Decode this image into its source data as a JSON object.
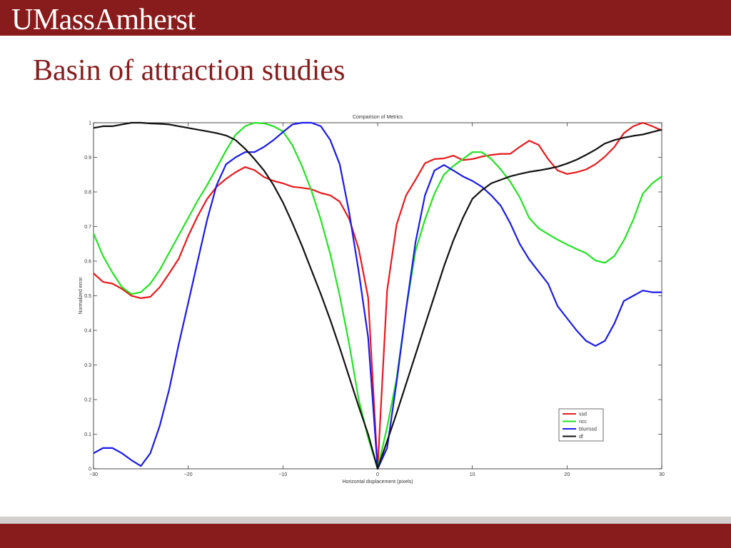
{
  "header": {
    "logo_text": "UMassAmherst"
  },
  "slide": {
    "title": "Basin of attraction studies"
  },
  "colors": {
    "brand": "#881c1c",
    "ssd": "#e8191c",
    "ncc": "#22e322",
    "blurrssd": "#1a1ae8",
    "df": "#111111"
  },
  "chart_data": {
    "type": "line",
    "title": "Comparison of Metrics",
    "xlabel": "Horizontal displacement (pixels)",
    "ylabel": "Normalized error",
    "xlim": [
      -30,
      30
    ],
    "ylim": [
      0,
      1
    ],
    "xticks": [
      -30,
      -20,
      -10,
      0,
      10,
      20,
      30
    ],
    "xtick_labels": [
      "−30",
      "−20",
      "−10",
      "0",
      "10",
      "20",
      "30"
    ],
    "yticks": [
      0,
      0.1,
      0.2,
      0.3,
      0.4,
      0.5,
      0.6,
      0.7,
      0.8,
      0.9,
      1
    ],
    "ytick_labels": [
      "0",
      "0.1",
      "0.2",
      "0.3",
      "0.4",
      "0.5",
      "0.6",
      "0.7",
      "0.8",
      "0.9",
      "1"
    ],
    "grid": false,
    "legend_position": "bottom-right",
    "x": [
      -30,
      -29,
      -28,
      -27,
      -26,
      -25,
      -24,
      -23,
      -22,
      -21,
      -20,
      -19,
      -18,
      -17,
      -16,
      -15,
      -14,
      -13,
      -12,
      -11,
      -10,
      -9,
      -8,
      -7,
      -6,
      -5,
      -4,
      -3,
      -2,
      -1,
      0,
      1,
      2,
      3,
      4,
      5,
      6,
      7,
      8,
      9,
      10,
      11,
      12,
      13,
      14,
      15,
      16,
      17,
      18,
      19,
      20,
      21,
      22,
      23,
      24,
      25,
      26,
      27,
      28,
      29,
      30
    ],
    "series": [
      {
        "name": "ssd",
        "color": "#e8191c",
        "values": [
          0.565,
          0.54,
          0.535,
          0.52,
          0.5,
          0.493,
          0.497,
          0.525,
          0.565,
          0.607,
          0.673,
          0.73,
          0.78,
          0.815,
          0.838,
          0.857,
          0.872,
          0.863,
          0.843,
          0.832,
          0.825,
          0.815,
          0.812,
          0.808,
          0.797,
          0.79,
          0.772,
          0.722,
          0.635,
          0.495,
          0.0,
          0.515,
          0.705,
          0.79,
          0.835,
          0.883,
          0.895,
          0.897,
          0.905,
          0.892,
          0.895,
          0.902,
          0.907,
          0.91,
          0.91,
          0.93,
          0.948,
          0.936,
          0.895,
          0.862,
          0.852,
          0.857,
          0.865,
          0.88,
          0.902,
          0.93,
          0.97,
          0.99,
          1.0,
          0.99,
          0.978
        ]
      },
      {
        "name": "ncc",
        "color": "#22e322",
        "values": [
          0.68,
          0.615,
          0.567,
          0.525,
          0.505,
          0.51,
          0.535,
          0.575,
          0.625,
          0.675,
          0.725,
          0.775,
          0.82,
          0.87,
          0.92,
          0.965,
          0.99,
          1.0,
          0.998,
          0.99,
          0.975,
          0.935,
          0.875,
          0.805,
          0.72,
          0.62,
          0.5,
          0.36,
          0.2,
          0.09,
          0.0,
          0.12,
          0.26,
          0.46,
          0.63,
          0.72,
          0.795,
          0.85,
          0.875,
          0.895,
          0.915,
          0.915,
          0.895,
          0.865,
          0.83,
          0.785,
          0.725,
          0.695,
          0.678,
          0.662,
          0.648,
          0.635,
          0.623,
          0.602,
          0.595,
          0.615,
          0.66,
          0.72,
          0.795,
          0.825,
          0.845
        ]
      },
      {
        "name": "blurrssd",
        "color": "#1a1ae8",
        "values": [
          0.045,
          0.06,
          0.06,
          0.045,
          0.025,
          0.008,
          0.045,
          0.125,
          0.23,
          0.36,
          0.48,
          0.6,
          0.72,
          0.82,
          0.88,
          0.9,
          0.915,
          0.915,
          0.93,
          0.95,
          0.973,
          0.995,
          1.0,
          1.0,
          0.99,
          0.95,
          0.88,
          0.74,
          0.57,
          0.38,
          0.0,
          0.06,
          0.25,
          0.46,
          0.655,
          0.79,
          0.862,
          0.878,
          0.862,
          0.845,
          0.832,
          0.815,
          0.79,
          0.76,
          0.71,
          0.65,
          0.605,
          0.57,
          0.535,
          0.47,
          0.435,
          0.4,
          0.37,
          0.355,
          0.37,
          0.42,
          0.485,
          0.5,
          0.515,
          0.51,
          0.51
        ]
      },
      {
        "name": "df",
        "color": "#111111",
        "values": [
          0.985,
          0.99,
          0.99,
          0.995,
          1.0,
          1.0,
          0.998,
          0.997,
          0.995,
          0.99,
          0.985,
          0.98,
          0.975,
          0.97,
          0.963,
          0.95,
          0.925,
          0.895,
          0.862,
          0.82,
          0.77,
          0.71,
          0.645,
          0.575,
          0.505,
          0.43,
          0.35,
          0.265,
          0.18,
          0.1,
          0.0,
          0.08,
          0.16,
          0.245,
          0.33,
          0.415,
          0.5,
          0.585,
          0.66,
          0.725,
          0.78,
          0.805,
          0.825,
          0.835,
          0.845,
          0.852,
          0.858,
          0.862,
          0.867,
          0.873,
          0.882,
          0.893,
          0.907,
          0.922,
          0.94,
          0.95,
          0.957,
          0.962,
          0.966,
          0.973,
          0.98
        ]
      }
    ]
  }
}
